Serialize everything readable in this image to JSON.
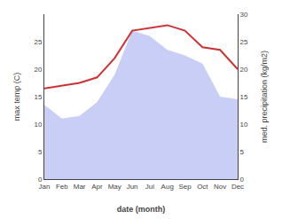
{
  "chart_data": {
    "type": "line",
    "xlabel": "date (month)",
    "ylabel": "max temp (C)",
    "y2label": "med. precipitation (kg/m2)",
    "categories": [
      "Jan",
      "Feb",
      "Mar",
      "Apr",
      "May",
      "Jun",
      "Jul",
      "Aug",
      "Sep",
      "Oct",
      "Nov",
      "Dec"
    ],
    "series": [
      {
        "type": "area",
        "axis": "y2",
        "color": "#c8cef5",
        "values": [
          13.5,
          11.0,
          11.5,
          14.0,
          19.0,
          27.0,
          26.0,
          23.5,
          22.5,
          21.0,
          15.0,
          14.5
        ]
      },
      {
        "type": "line",
        "color": "#cc3333",
        "values": [
          16.5,
          17.0,
          17.5,
          18.5,
          22.0,
          27.0,
          27.5,
          28.0,
          27.0,
          24.0,
          23.5,
          20.0
        ]
      }
    ],
    "ylim": [
      0,
      30
    ],
    "yticks": [
      0,
      5,
      10,
      15,
      20,
      25
    ],
    "y2lim": [
      0,
      30
    ],
    "y2ticks": [
      0,
      5,
      10,
      15,
      20,
      25,
      30
    ],
    "grid": false
  }
}
